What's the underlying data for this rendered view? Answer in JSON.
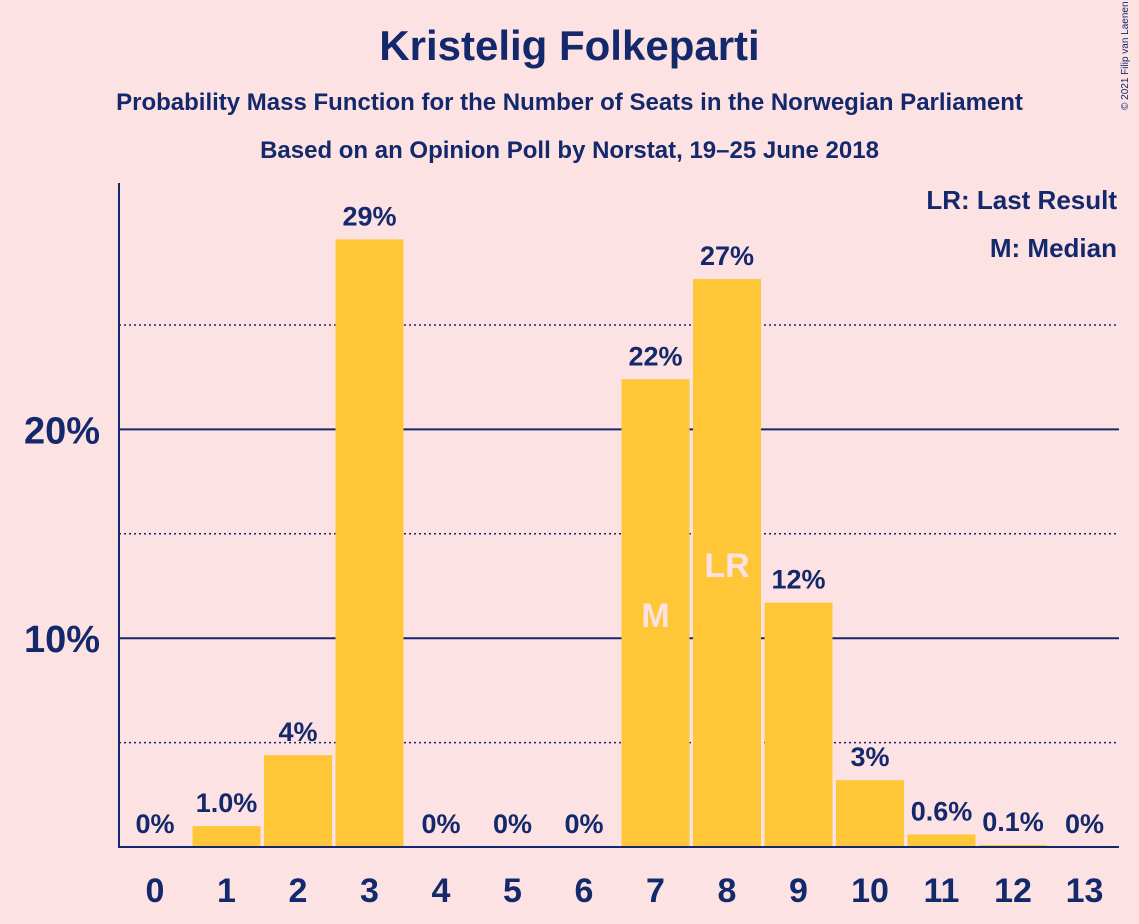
{
  "chart_data": {
    "type": "bar",
    "title": "Kristelig Folkeparti",
    "subtitle1": "Probability Mass Function for the Number of Seats in the Norwegian Parliament",
    "subtitle2": "Based on an Opinion Poll by Norstat, 19–25 June 2018",
    "copyright": "© 2021 Filip van Laenen",
    "categories": [
      "0",
      "1",
      "2",
      "3",
      "4",
      "5",
      "6",
      "7",
      "8",
      "9",
      "10",
      "11",
      "12",
      "13"
    ],
    "values": [
      0,
      1.0,
      4.4,
      29.1,
      0,
      0,
      0,
      22.4,
      27.2,
      11.7,
      3.2,
      0.6,
      0.1,
      0
    ],
    "data_labels": [
      "0%",
      "1.0%",
      "4%",
      "29%",
      "0%",
      "0%",
      "0%",
      "22%",
      "27%",
      "12%",
      "3%",
      "0.6%",
      "0.1%",
      "0%"
    ],
    "ylim": [
      0,
      31.8
    ],
    "major_ticks": [
      10,
      20
    ],
    "major_tick_labels": [
      "10%",
      "20%"
    ],
    "minor_gridlines": [
      5,
      15,
      25
    ],
    "xlabel": "",
    "ylabel": "",
    "markers": [
      {
        "category": "7",
        "label": "M"
      },
      {
        "category": "8",
        "label": "LR"
      }
    ],
    "legend": {
      "position": "top-right",
      "entries": [
        "LR: Last Result",
        "M: Median"
      ]
    },
    "colors": {
      "background": "#fde2e4",
      "bar": "#ffc637",
      "text": "#13296b",
      "marker_text": "#fde2e4"
    }
  }
}
